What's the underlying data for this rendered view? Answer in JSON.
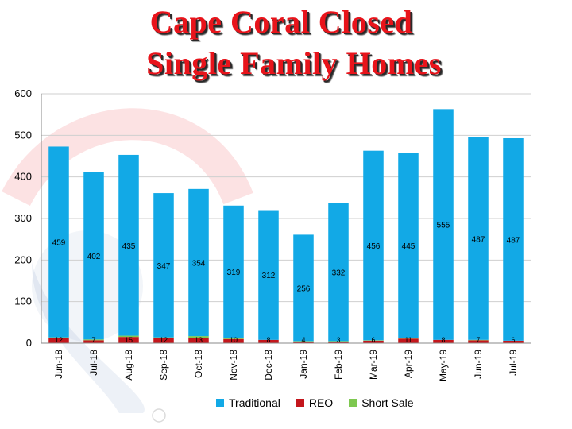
{
  "header": {
    "title_line1": "Cape Coral Closed",
    "title_line2": "Single Family Homes"
  },
  "colors": {
    "traditional": "#12a9e6",
    "reo": "#c4161c",
    "short_sale": "#7ec850",
    "title": "#e8141b"
  },
  "chart_data": {
    "type": "bar",
    "stacked": true,
    "categories": [
      "Jun-18",
      "Jul-18",
      "Aug-18",
      "Sep-18",
      "Oct-18",
      "Nov-18",
      "Dec-18",
      "Jan-19",
      "Feb-19",
      "Mar-19",
      "Apr-19",
      "May-19",
      "Jun-19",
      "Jul-19"
    ],
    "series": [
      {
        "name": "Traditional",
        "values": [
          459,
          402,
          435,
          347,
          354,
          319,
          312,
          256,
          332,
          456,
          445,
          555,
          487,
          487
        ]
      },
      {
        "name": "REO",
        "values": [
          12,
          7,
          15,
          12,
          13,
          10,
          8,
          4,
          3,
          6,
          11,
          8,
          7,
          6
        ]
      },
      {
        "name": "Short Sale",
        "values": [
          2,
          2,
          3,
          2,
          4,
          2,
          0,
          1,
          2,
          1,
          2,
          0,
          1,
          0
        ]
      }
    ],
    "bottom_labels": [
      "12",
      "7",
      "15",
      "12",
      "13",
      "10",
      "8",
      "4",
      "3",
      "6",
      "11",
      "8",
      "7",
      "6"
    ],
    "ylim": [
      0,
      600
    ],
    "yticks": [
      0,
      100,
      200,
      300,
      400,
      500,
      600
    ],
    "grid": true,
    "legend_position": "bottom"
  }
}
